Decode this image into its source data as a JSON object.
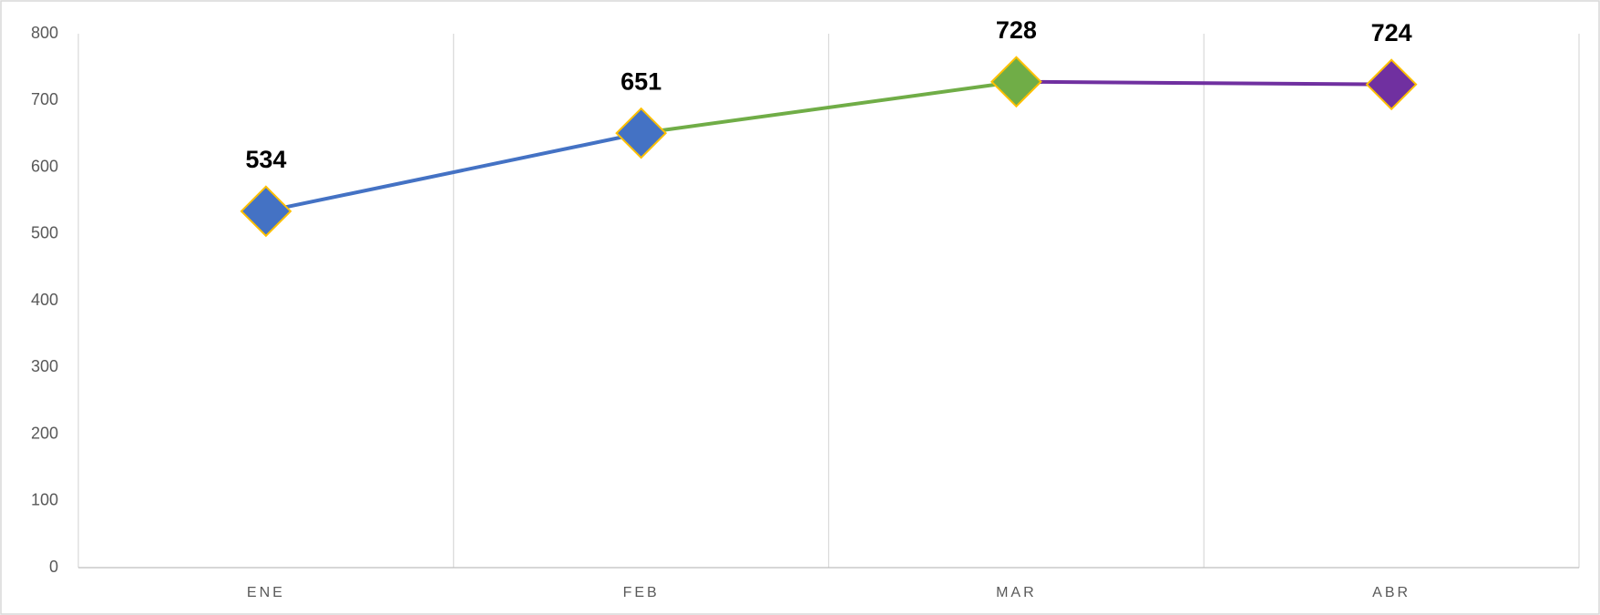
{
  "chart_data": {
    "type": "line",
    "categories": [
      "ENE",
      "FEB",
      "MAR",
      "ABR"
    ],
    "values": [
      534,
      651,
      728,
      724
    ],
    "point_colors": [
      "#4472c4",
      "#4472c4",
      "#70ad47",
      "#7030a0"
    ],
    "marker": "diamond",
    "marker_edge_color": "#ffc000",
    "ylim": [
      0,
      800
    ],
    "yticks": [
      0,
      100,
      200,
      300,
      400,
      500,
      600,
      700,
      800
    ],
    "grid": "x",
    "data_labels": true
  }
}
